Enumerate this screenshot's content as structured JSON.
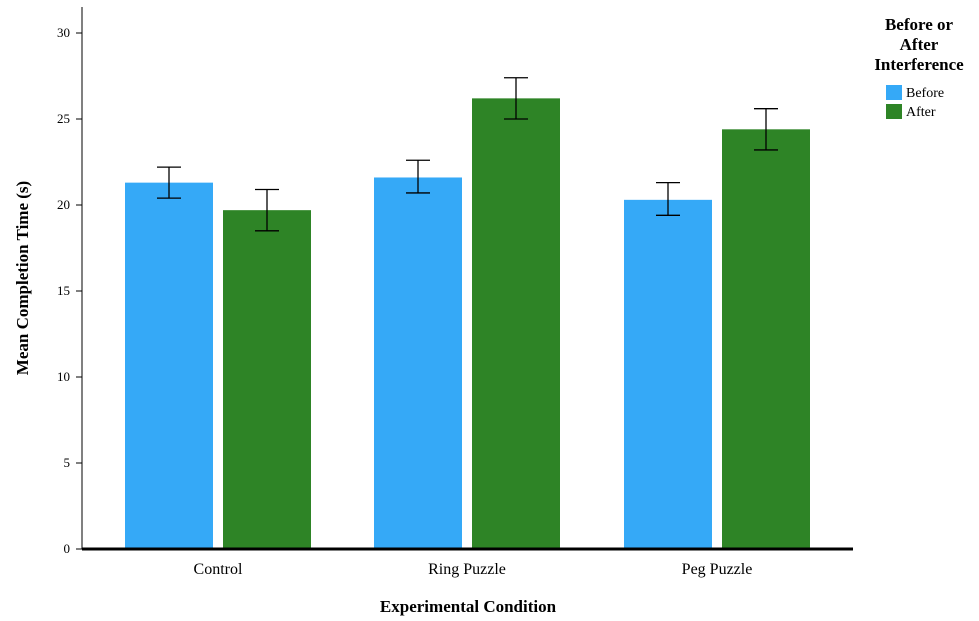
{
  "chart_data": {
    "type": "bar",
    "xlabel": "Experimental Condition",
    "ylabel": "Mean Completion Time (s)",
    "ylim": [
      0,
      31
    ],
    "yticks": [
      0,
      5,
      10,
      15,
      20,
      25,
      30
    ],
    "categories": [
      "Control",
      "Ring Puzzle",
      "Peg Puzzle"
    ],
    "legend": {
      "title_lines": [
        "Before or",
        "After",
        "Interference"
      ],
      "placement": "top-right"
    },
    "series": [
      {
        "name": "Before",
        "color": "#35a9f7",
        "values": [
          21.3,
          21.6,
          20.3
        ],
        "error_low": [
          20.4,
          20.7,
          19.4
        ],
        "error_high": [
          22.2,
          22.6,
          21.3
        ]
      },
      {
        "name": "After",
        "color": "#2e8426",
        "values": [
          19.7,
          26.2,
          24.4
        ],
        "error_low": [
          18.5,
          25.0,
          23.2
        ],
        "error_high": [
          20.9,
          27.4,
          25.6
        ]
      }
    ],
    "grid": false
  }
}
